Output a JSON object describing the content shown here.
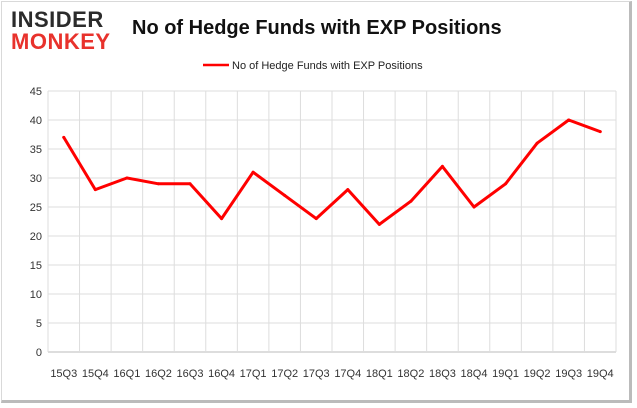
{
  "brand": {
    "line1": "INSIDER",
    "line2": "MONKEY"
  },
  "colors": {
    "series": "#ff0000",
    "grid": "#dddddd",
    "brand_red": "#e8322c"
  },
  "chart_data": {
    "type": "line",
    "title": "No of Hedge Funds with EXP Positions",
    "categories": [
      "15Q3",
      "15Q4",
      "16Q1",
      "16Q2",
      "16Q3",
      "16Q4",
      "17Q1",
      "17Q2",
      "17Q3",
      "17Q4",
      "18Q1",
      "18Q2",
      "18Q3",
      "18Q4",
      "19Q1",
      "19Q2",
      "19Q3",
      "19Q4"
    ],
    "series": [
      {
        "name": "No of Hedge Funds with EXP Positions",
        "values": [
          37,
          28,
          30,
          29,
          29,
          23,
          31,
          27,
          23,
          28,
          22,
          26,
          32,
          25,
          29,
          36,
          40,
          38
        ]
      }
    ],
    "ylim": [
      0,
      45
    ],
    "yticks": [
      0,
      5,
      10,
      15,
      20,
      25,
      30,
      35,
      40,
      45
    ],
    "grid": true,
    "legend": "top-center",
    "xlabel": "",
    "ylabel": ""
  }
}
